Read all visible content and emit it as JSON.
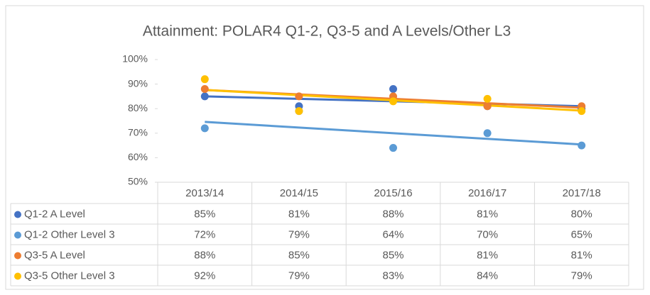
{
  "chart_data": {
    "type": "scatter",
    "title": "Attainment: POLAR4 Q1-2, Q3-5 and A Levels/Other L3",
    "categories": [
      "2013/14",
      "2014/15",
      "2015/16",
      "2016/17",
      "2017/18"
    ],
    "series": [
      {
        "name": "Q1-2 A Level",
        "color": "#4472c4",
        "values": [
          85,
          81,
          88,
          81,
          80
        ],
        "value_labels": [
          "85%",
          "81%",
          "88%",
          "81%",
          "80%"
        ]
      },
      {
        "name": "Q1-2 Other Level 3",
        "color": "#5b9bd5",
        "values": [
          72,
          79,
          64,
          70,
          65
        ],
        "value_labels": [
          "72%",
          "79%",
          "64%",
          "70%",
          "65%"
        ]
      },
      {
        "name": "Q3-5 A Level",
        "color": "#ed7d31",
        "values": [
          88,
          85,
          85,
          81,
          81
        ],
        "value_labels": [
          "88%",
          "85%",
          "85%",
          "81%",
          "81%"
        ]
      },
      {
        "name": "Q3-5 Other Level 3",
        "color": "#ffc000",
        "values": [
          92,
          79,
          83,
          84,
          79
        ],
        "value_labels": [
          "92%",
          "79%",
          "83%",
          "84%",
          "79%"
        ]
      }
    ],
    "ylim": [
      50,
      100
    ],
    "yticks": [
      {
        "value": 50,
        "label": "50%"
      },
      {
        "value": 60,
        "label": "60%"
      },
      {
        "value": 70,
        "label": "70%"
      },
      {
        "value": 80,
        "label": "80%"
      },
      {
        "value": 90,
        "label": "90%"
      },
      {
        "value": 100,
        "label": "100%"
      }
    ],
    "trendline": true
  }
}
